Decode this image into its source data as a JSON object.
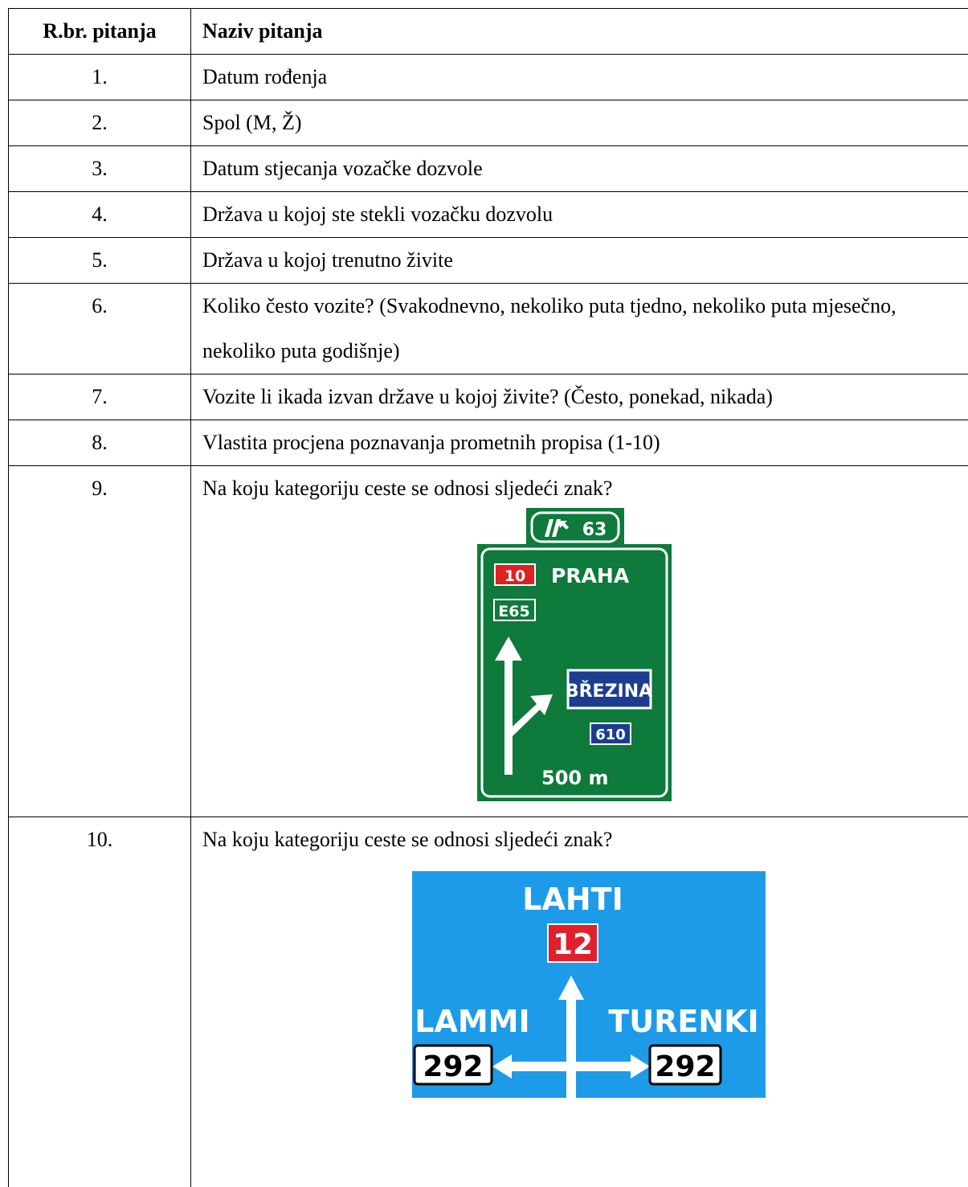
{
  "table": {
    "header": [
      "R.br. pitanja",
      "Naziv pitanja"
    ],
    "rows": [
      [
        "1.",
        "Datum rođenja"
      ],
      [
        "2.",
        "Spol (M, Ž)"
      ],
      [
        "3.",
        "Datum stjecanja vozačke dozvole"
      ],
      [
        "4.",
        "Država u kojoj ste stekli vozačku dozvolu"
      ],
      [
        "5.",
        "Država u kojoj trenutno živite"
      ],
      [
        "6.",
        "Koliko često vozite? (Svakodnevno, nekoliko puta tjedno, nekoliko puta mjesečno, nekoliko puta godišnje)"
      ],
      [
        "7.",
        "Vozite li ikada izvan države u kojoj živite? (Često, ponekad, nikada)"
      ],
      [
        "8.",
        "Vlastita procjena poznavanja prometnih propisa (1-10)"
      ],
      [
        "9.",
        "Na koju kategoriju ceste se odnosi sljedeći znak?"
      ],
      [
        "10.",
        "Na koju kategoriju ceste se odnosi sljedeći znak?"
      ]
    ]
  },
  "sign_9": {
    "exit": "63",
    "route": "10",
    "city": "PRAHA",
    "euro_route": "E65",
    "branch_city": "BŘEZINA",
    "branch_route": "610",
    "distance": "500 m"
  },
  "sign_10": {
    "ahead_city": "LAHTI",
    "ahead_route": "12",
    "left_city": "LAMMI",
    "left_route": "292",
    "right_city": "TURENKI",
    "right_route": "292"
  }
}
